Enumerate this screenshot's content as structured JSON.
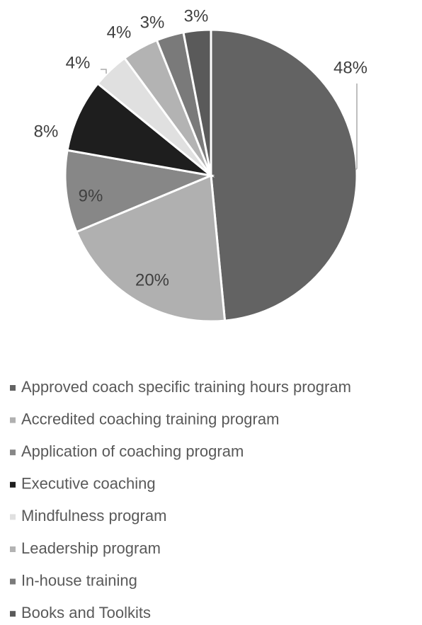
{
  "chart_data": {
    "type": "pie",
    "categories": [
      "Approved coach specific training hours program",
      "Accredited coaching training program",
      "Application of coaching program",
      "Executive coaching",
      "Mindfulness program",
      "Leadership program",
      "In-house training",
      "Books and Toolkits"
    ],
    "values": [
      48,
      20,
      9,
      8,
      4,
      4,
      3,
      3
    ],
    "value_labels": [
      "48%",
      "20%",
      "9%",
      "8%",
      "4%",
      "4%",
      "3%",
      "3%"
    ],
    "colors": [
      "#636363",
      "#b0b0b0",
      "#878787",
      "#1e1e1e",
      "#e0e0e0",
      "#b3b3b3",
      "#7a7a7a",
      "#5a5a5a"
    ],
    "legend": "bottom"
  }
}
